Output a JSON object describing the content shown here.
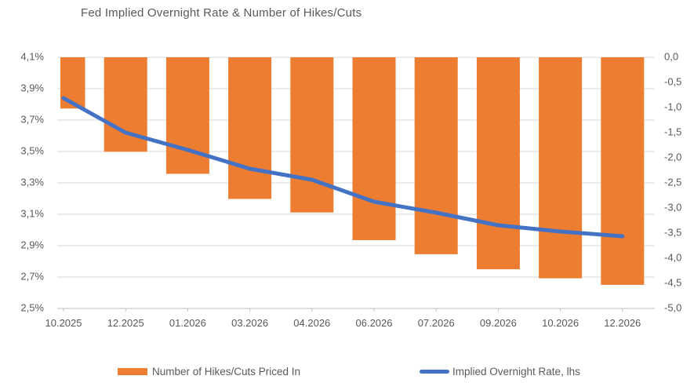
{
  "title": "Fed Implied Overnight Rate & Number of Hikes/Cuts",
  "colors": {
    "bar": "#ED7D31",
    "line": "#4472C4",
    "gridline": "#D9D9D9",
    "axis_line": "#BFBFBF",
    "axis_text": "#595959",
    "title_text": "#595959"
  },
  "chart_data": {
    "type": "bar",
    "subtype": "combo-bar-line-dual-axis",
    "title": "Fed Implied Overnight Rate & Number of Hikes/Cuts",
    "categories": [
      "10.2025",
      "12.2025",
      "01.2026",
      "03.2026",
      "04.2026",
      "06.2026",
      "07.2026",
      "09.2026",
      "10.2026",
      "12.2026"
    ],
    "series": [
      {
        "name": "Number of Hikes/Cuts Priced In",
        "type": "bar",
        "axis": "right",
        "color": "#ED7D31",
        "values": [
          -1.02,
          -1.88,
          -2.32,
          -2.82,
          -3.09,
          -3.64,
          -3.92,
          -4.22,
          -4.4,
          -4.53
        ]
      },
      {
        "name": "Implied Overnight Rate, lhs",
        "type": "line",
        "axis": "left",
        "color": "#4472C4",
        "values": [
          3.84,
          3.62,
          3.51,
          3.39,
          3.32,
          3.18,
          3.11,
          3.03,
          2.99,
          2.96
        ]
      }
    ],
    "left_axis": {
      "min": 2.5,
      "max": 4.1,
      "ticks": [
        "4,1%",
        "3,9%",
        "3,7%",
        "3,5%",
        "3,3%",
        "3,1%",
        "2,9%",
        "2,7%",
        "2,5%"
      ]
    },
    "right_axis": {
      "min": -5.0,
      "max": 0.0,
      "ticks": [
        "0,0",
        "-0,5",
        "-1,0",
        "-1,5",
        "-2,0",
        "-2,5",
        "-3,0",
        "-3,5",
        "-4,0",
        "-4,5",
        "-5,0"
      ]
    },
    "grid": true,
    "legend_position": "bottom"
  }
}
